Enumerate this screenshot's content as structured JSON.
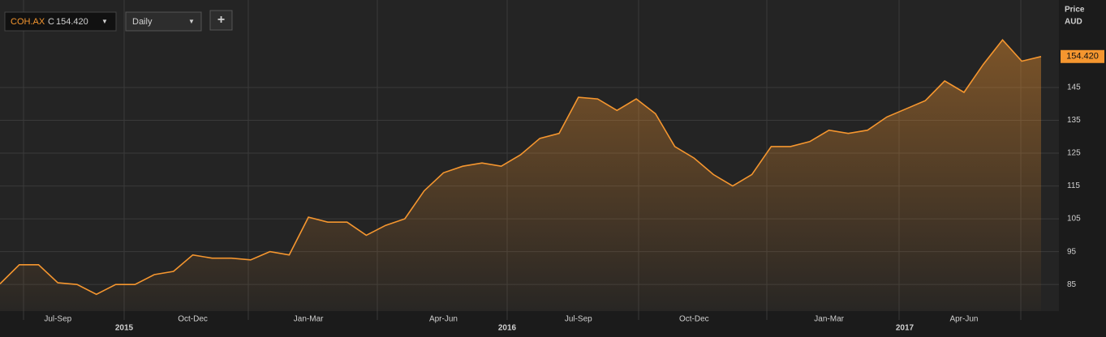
{
  "chart_data": {
    "type": "line",
    "toolbar": {
      "symbol": "COH.AX",
      "close_prefix": "C",
      "interval": "Daily",
      "add_button": "+",
      "dropdown_arrow": "▼"
    },
    "y_axis_title": "Price",
    "y_axis_unit": "AUD",
    "last_price": {
      "value": 154.42,
      "label": "154.420"
    },
    "categories": [
      null,
      null,
      null,
      "Jul-Sep",
      null,
      null,
      null,
      null,
      null,
      null,
      "Oct-Dec",
      null,
      null,
      null,
      null,
      null,
      "Jan-Mar",
      null,
      null,
      null,
      null,
      null,
      null,
      "Apr-Jun",
      null,
      null,
      null,
      null,
      null,
      null,
      "Jul-Sep",
      null,
      null,
      null,
      null,
      null,
      "Oct-Dec",
      null,
      null,
      null,
      null,
      null,
      null,
      "Jan-Mar",
      null,
      null,
      null,
      null,
      null,
      null,
      "Apr-Jun",
      null,
      null,
      null,
      null
    ],
    "year_labels": [
      "2015",
      "2016",
      "2017"
    ],
    "series": [
      {
        "name": "COH.AX",
        "color": "#f5962f",
        "values": [
          85.2,
          91,
          91,
          85.5,
          85,
          82,
          85,
          85,
          88,
          89,
          94,
          93,
          93,
          92.5,
          95,
          94,
          105.5,
          104,
          104,
          100,
          103,
          105,
          113.5,
          119,
          121,
          122,
          121,
          124.5,
          129.5,
          131,
          142,
          141.5,
          138,
          141.5,
          137,
          127,
          123.5,
          118.5,
          115,
          118.5,
          127,
          127,
          128.5,
          132,
          131,
          132,
          136,
          138.5,
          141,
          147,
          143.5,
          152,
          159.5,
          153,
          154.42
        ]
      }
    ],
    "ylim": [
      76.9,
      170.4
    ],
    "yticks": [
      85,
      95,
      105,
      115,
      125,
      135,
      145
    ],
    "grid": true
  }
}
